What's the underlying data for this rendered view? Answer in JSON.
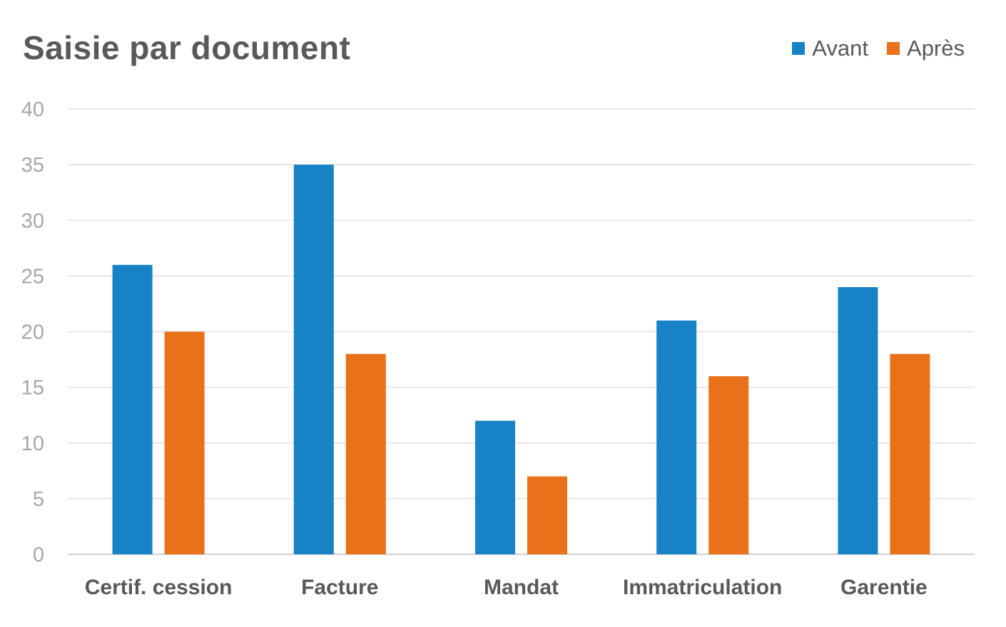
{
  "colors": {
    "avant": "#1782C5",
    "apres": "#E8711A",
    "grid": "#E6E6E6",
    "axis": "#D0D0D0"
  },
  "chart_data": {
    "type": "bar",
    "title": "Saisie par document",
    "xlabel": "",
    "ylabel": "",
    "categories": [
      "Certif. cession",
      "Facture",
      "Mandat",
      "Immatriculation",
      "Garentie"
    ],
    "series": [
      {
        "name": "Avant",
        "values": [
          26,
          35,
          12,
          21,
          24
        ]
      },
      {
        "name": "Après",
        "values": [
          20,
          18,
          7,
          16,
          18
        ]
      }
    ],
    "ylim": [
      0,
      40
    ],
    "yticks": [
      "0",
      "5",
      "10",
      "15",
      "20",
      "25",
      "30",
      "35",
      "40"
    ],
    "grid": true,
    "legend_position": "top-right"
  }
}
